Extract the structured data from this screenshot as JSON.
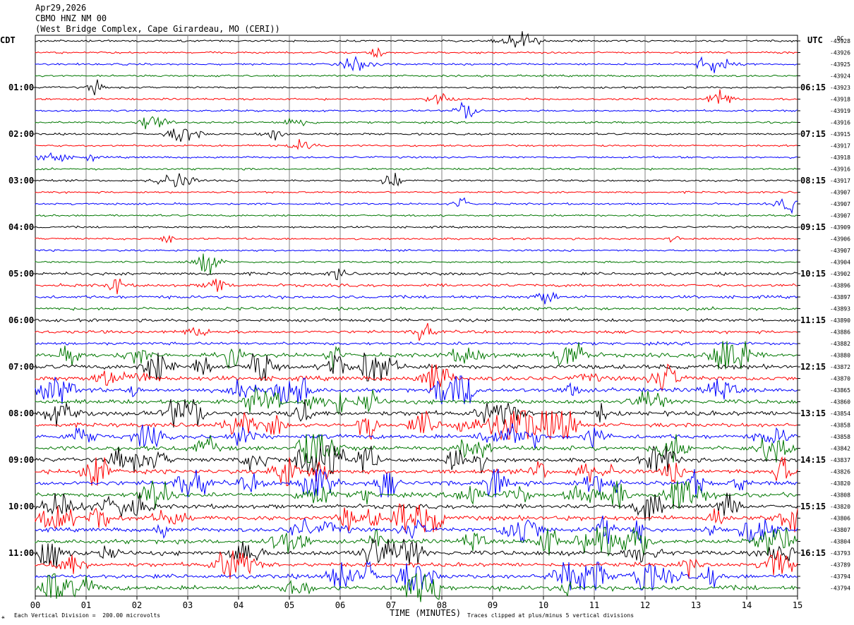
{
  "header": {
    "date": "Apr29,2026",
    "station": "CBMO HNZ NM 00",
    "location": "(West Bridge Complex, Cape Girardeau, MO (CERI))"
  },
  "left_tz": "CDT",
  "right_tz": "UTC",
  "dc_label": "DC",
  "footer": {
    "scale": "Each Vertical Division =  200.00 microvolts",
    "clip": "Traces clipped at plus/minus 5 vertical divisions",
    "corner_mark": "⚹"
  },
  "chart_data": {
    "type": "line",
    "title": "",
    "xlabel": "TIME (MINUTES)",
    "x_ticks": [
      "00",
      "01",
      "02",
      "03",
      "04",
      "05",
      "06",
      "07",
      "08",
      "09",
      "10",
      "11",
      "12",
      "13",
      "14",
      "15"
    ],
    "xlim": [
      0,
      15
    ],
    "left_hour_labels": [
      "01:00",
      "02:00",
      "03:00",
      "04:00",
      "05:00",
      "06:00",
      "07:00",
      "08:00",
      "09:00",
      "10:00",
      "11:00"
    ],
    "right_hour_labels": [
      "06:15",
      "07:15",
      "08:15",
      "09:15",
      "10:15",
      "11:15",
      "12:15",
      "13:15",
      "14:15",
      "15:15",
      "16:15"
    ],
    "trace_colors": [
      "#000000",
      "#ff0000",
      "#0000ff",
      "#007700"
    ],
    "dc_offsets": [
      "-43928",
      "-43926",
      "-43925",
      "-43924",
      "-43923",
      "-43918",
      "-43919",
      "-43916",
      "-43915",
      "-43917",
      "-43918",
      "-43916",
      "-43917",
      "-43907",
      "-43907",
      "-43907",
      "-43909",
      "-43906",
      "-43907",
      "-43904",
      "-43902",
      "-43896",
      "-43897",
      "-43893",
      "-43890",
      "-43886",
      "-43882",
      "-43880",
      "-43872",
      "-43870",
      "-43865",
      "-43860",
      "-43854",
      "-43858",
      "-43858",
      "-43842",
      "-43837",
      "-43826",
      "-43820",
      "-43808",
      "-43820",
      "-43806",
      "-43807",
      "-43804",
      "-43793",
      "-43789",
      "-43794",
      "-43794"
    ],
    "trace_count": 48,
    "minutes_per_trace": 15
  }
}
